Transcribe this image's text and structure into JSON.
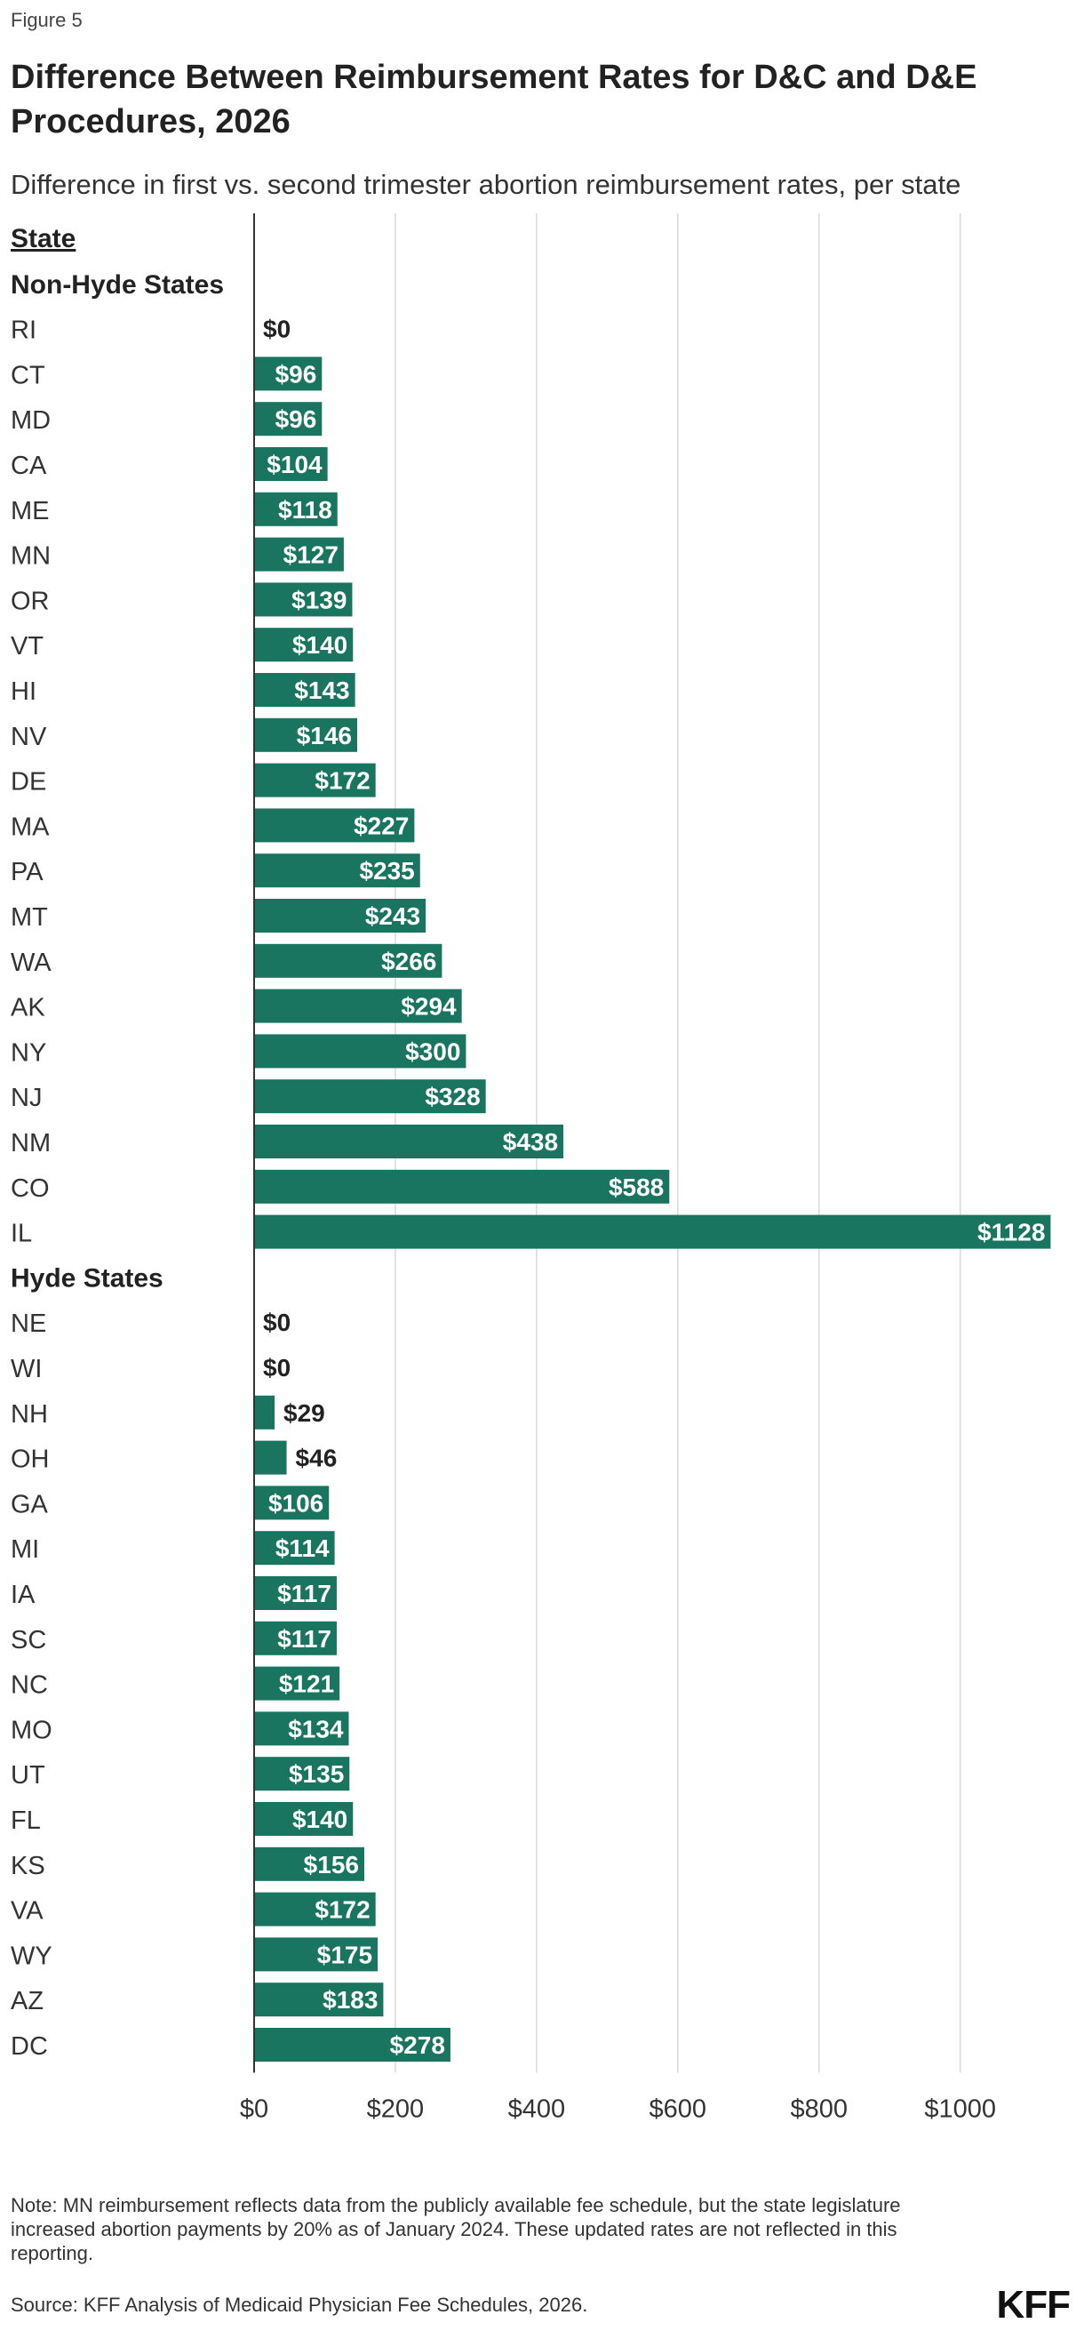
{
  "figure_label": "Figure 5",
  "title": "Difference Between Reimbursement Rates for D&C and D&E Procedures, 2026",
  "subtitle": "Difference in first vs. second trimester abortion reimbursement rates, per state",
  "note": "Note: MN reimbursement reflects data from the publicly available fee schedule, but the state legislature increased abortion payments by 20% as of January 2024. These updated rates are not reflected in this reporting.",
  "source": "Source: KFF Analysis of Medicaid Physician Fee Schedules, 2026.",
  "logo": "KFF",
  "colors": {
    "bar": "#1a7560",
    "grid": "#d9d9d9",
    "axis": "#333333"
  },
  "chart_data": {
    "type": "bar",
    "orientation": "horizontal",
    "column_header": "State",
    "value_prefix": "$",
    "xlim": [
      0,
      1130
    ],
    "xticks": [
      0,
      200,
      400,
      600,
      800,
      1000
    ],
    "xtick_labels": [
      "$0",
      "$200",
      "$400",
      "$600",
      "$800",
      "$1000"
    ],
    "grid": true,
    "groups": [
      {
        "name": "Non-Hyde States",
        "categories": [
          "RI",
          "CT",
          "MD",
          "CA",
          "ME",
          "MN",
          "OR",
          "VT",
          "HI",
          "NV",
          "DE",
          "MA",
          "PA",
          "MT",
          "WA",
          "AK",
          "NY",
          "NJ",
          "NM",
          "CO",
          "IL"
        ],
        "values": [
          0,
          96,
          96,
          104,
          118,
          127,
          139,
          140,
          143,
          146,
          172,
          227,
          235,
          243,
          266,
          294,
          300,
          328,
          438,
          588,
          1128
        ]
      },
      {
        "name": "Hyde States",
        "categories": [
          "NE",
          "WI",
          "NH",
          "OH",
          "GA",
          "MI",
          "IA",
          "SC",
          "NC",
          "MO",
          "UT",
          "FL",
          "KS",
          "VA",
          "WY",
          "AZ",
          "DC"
        ],
        "values": [
          0,
          0,
          29,
          46,
          106,
          114,
          117,
          117,
          121,
          134,
          135,
          140,
          156,
          172,
          175,
          183,
          278
        ]
      }
    ]
  }
}
